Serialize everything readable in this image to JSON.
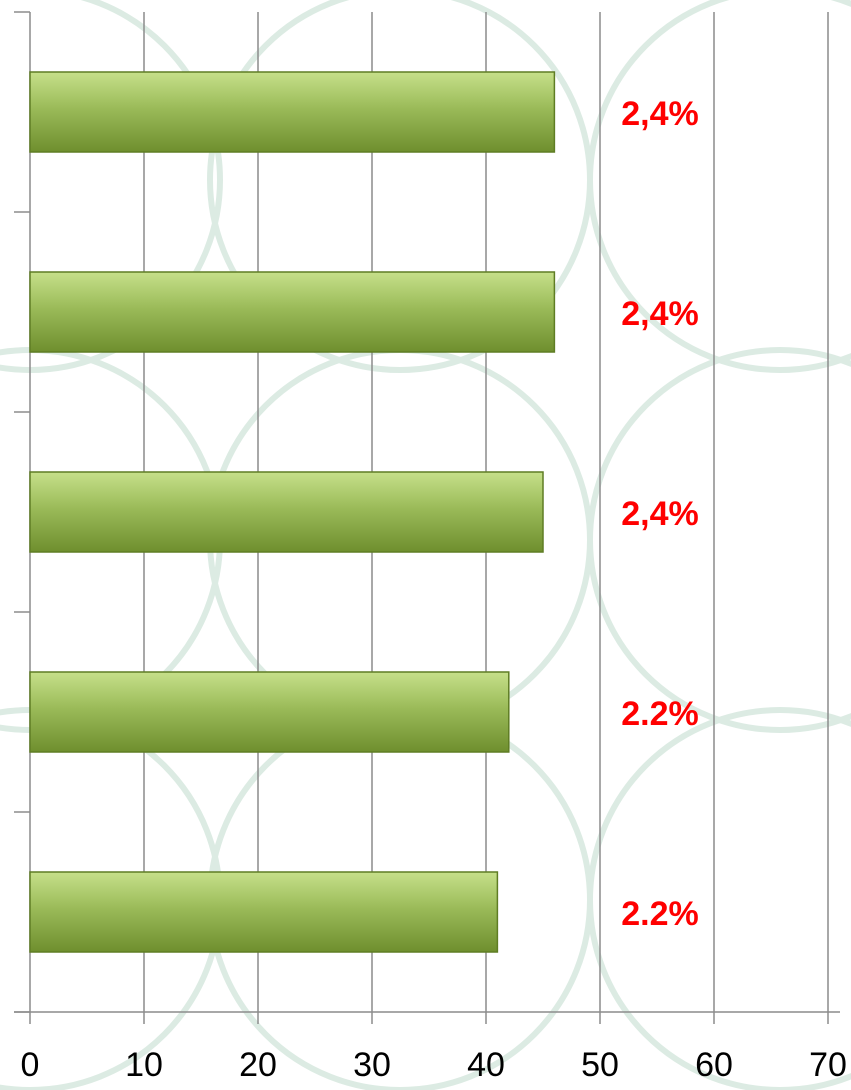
{
  "chart_data": {
    "type": "barh",
    "categories": [
      null,
      null,
      null,
      null,
      null
    ],
    "values": [
      46,
      46,
      45,
      42,
      41
    ],
    "annotations": [
      "2,4%",
      "2,4%",
      "2,4%",
      "2.2%",
      "2.2%"
    ],
    "color": "#9bbb59",
    "xlim": [
      0,
      70
    ],
    "xticks": [
      0,
      10,
      20,
      30,
      40,
      50,
      60,
      70
    ],
    "grid": true
  }
}
